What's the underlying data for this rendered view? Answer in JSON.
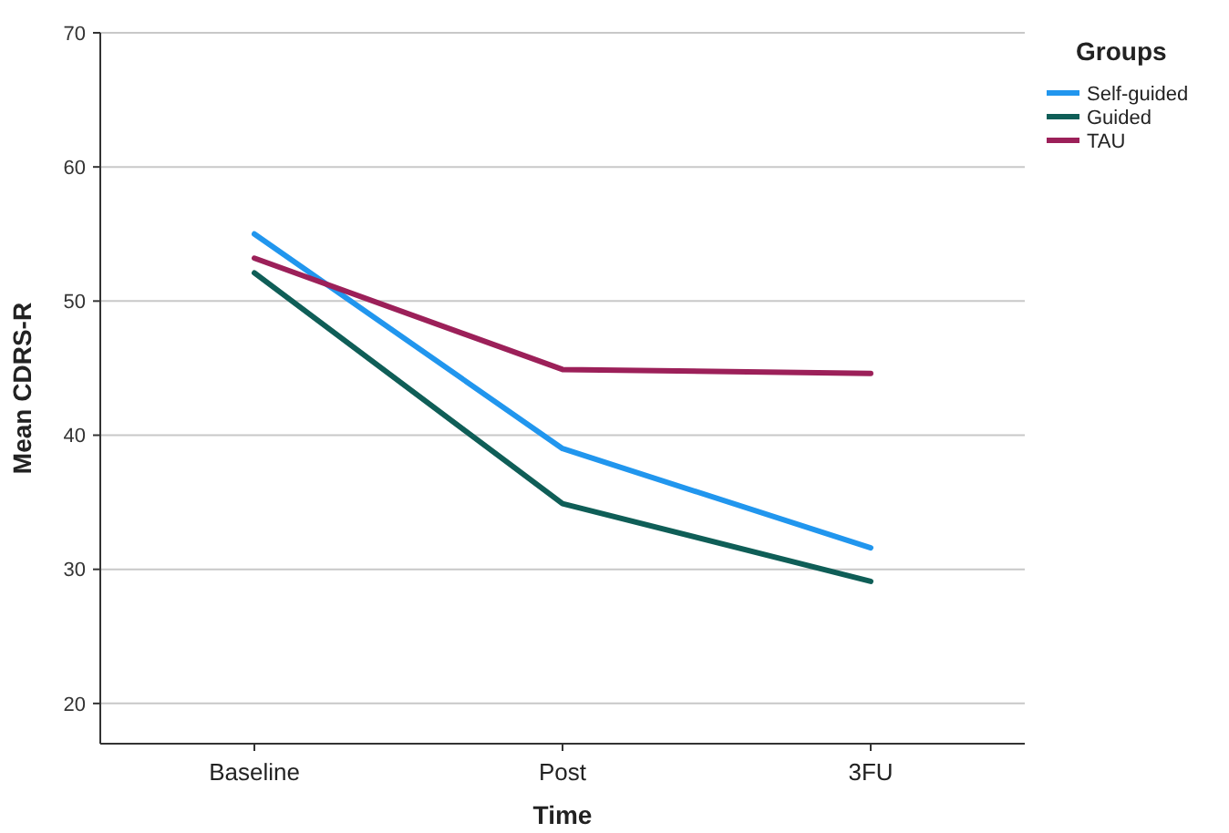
{
  "chart_data": {
    "type": "line",
    "xlabel": "Time",
    "ylabel": "Mean CDRS-R",
    "legend_title": "Groups",
    "categories": [
      "Baseline",
      "Post",
      "3FU"
    ],
    "series": [
      {
        "name": "Self-guided",
        "color": "#2196ee",
        "values": [
          55.0,
          39.0,
          31.6
        ]
      },
      {
        "name": "Guided",
        "color": "#0f5e57",
        "values": [
          52.1,
          34.9,
          29.1
        ]
      },
      {
        "name": "TAU",
        "color": "#9c2059",
        "values": [
          53.2,
          44.9,
          44.6
        ]
      }
    ],
    "ylim": [
      17,
      70
    ],
    "yticks": [
      20,
      30,
      40,
      50,
      60,
      70
    ],
    "grid": "y",
    "legend": "top right",
    "marker": "none",
    "line_style": "solid"
  }
}
